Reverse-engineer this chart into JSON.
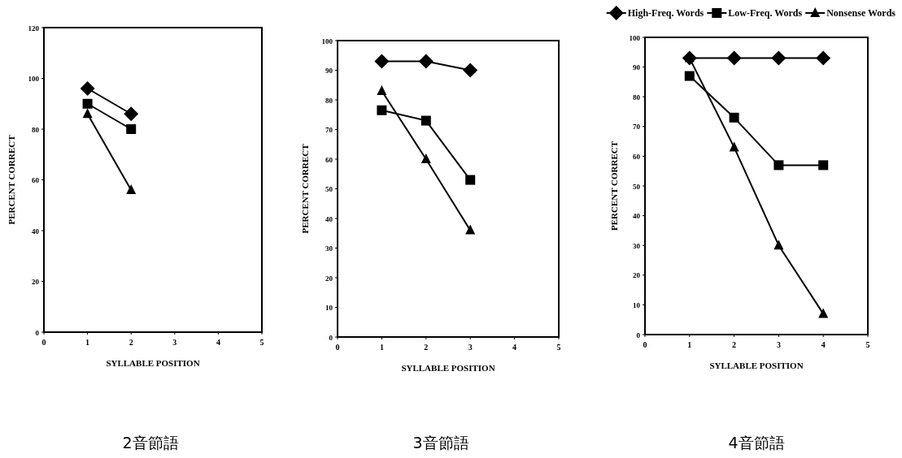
{
  "chart_data": [
    {
      "type": "line",
      "xlabel": "SYLLABLE POSITION",
      "ylabel": "PERCENT CORRECT",
      "annotations": [
        "2音節語"
      ],
      "xlim": [
        0,
        5
      ],
      "xticks": [
        0,
        1,
        2,
        3,
        4,
        5
      ],
      "ylim": [
        0,
        120
      ],
      "yticks": [
        0,
        20,
        40,
        60,
        80,
        100,
        120
      ],
      "x": [
        1,
        2
      ],
      "series": [
        {
          "color": "#000000",
          "marker": "diamond",
          "values": [
            96,
            86
          ]
        },
        {
          "color": "#000000",
          "marker": "square",
          "values": [
            90,
            80
          ]
        },
        {
          "color": "#000000",
          "marker": "triangle",
          "values": [
            86,
            56
          ]
        }
      ]
    },
    {
      "type": "line",
      "xlabel": "SYLLABLE POSITION",
      "ylabel": "PERCENT CORRECT",
      "annotations": [
        "3音節語"
      ],
      "xlim": [
        0,
        5
      ],
      "xticks": [
        0,
        1,
        2,
        3,
        4,
        5
      ],
      "ylim": [
        0,
        100
      ],
      "yticks": [
        0,
        10,
        20,
        30,
        40,
        50,
        60,
        70,
        80,
        90,
        100
      ],
      "x": [
        1,
        2,
        3
      ],
      "series": [
        {
          "color": "#000000",
          "marker": "diamond",
          "values": [
            93,
            93,
            90
          ]
        },
        {
          "color": "#000000",
          "marker": "square",
          "values": [
            76.5,
            73,
            53
          ]
        },
        {
          "color": "#000000",
          "marker": "triangle",
          "values": [
            83,
            60,
            36
          ]
        }
      ]
    },
    {
      "type": "line",
      "xlabel": "SYLLABLE POSITION",
      "ylabel": "PERCENT CORRECT",
      "annotations": [
        "4音節語"
      ],
      "xlim": [
        0,
        5
      ],
      "xticks": [
        0,
        1,
        2,
        3,
        4,
        5
      ],
      "ylim": [
        0,
        100
      ],
      "yticks": [
        0,
        10,
        20,
        30,
        40,
        50,
        60,
        70,
        80,
        90,
        100
      ],
      "x": [
        1,
        2,
        3,
        4
      ],
      "legend": "top right",
      "series": [
        {
          "name": "High-Freq. Words",
          "color": "#000000",
          "marker": "diamond",
          "values": [
            93,
            93,
            93,
            93
          ]
        },
        {
          "name": "Low-Freq. Words",
          "color": "#000000",
          "marker": "square",
          "values": [
            87,
            73,
            57,
            57
          ]
        },
        {
          "name": "Nonsense Words",
          "color": "#000000",
          "marker": "triangle",
          "values": [
            93,
            63,
            30,
            7
          ]
        }
      ]
    }
  ]
}
